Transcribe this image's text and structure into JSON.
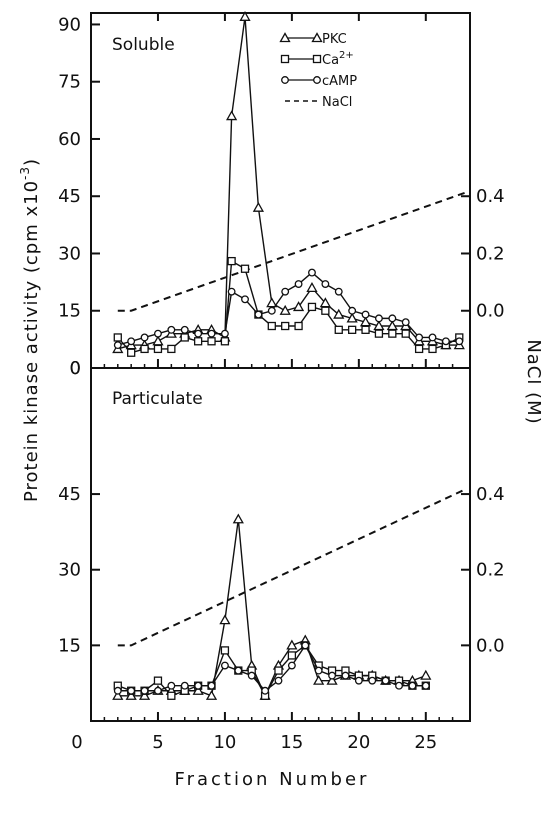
{
  "chart_data": [
    {
      "type": "line",
      "panel_label": "Soluble",
      "x_range": [
        0,
        28
      ],
      "x_ticks": [
        "0",
        "5",
        "10",
        "15",
        "20",
        "25"
      ],
      "left_y_range": [
        0,
        93
      ],
      "left_y_ticks": [
        "0",
        "15",
        "30",
        "45",
        "60",
        "75",
        "90"
      ],
      "right_axis": {
        "ticks": [
          "0.0",
          "0.2",
          "0.4"
        ],
        "values": [
          0.0,
          0.2,
          0.4
        ]
      },
      "legend": [
        {
          "marker": "triangle",
          "label": "PKC"
        },
        {
          "marker": "square",
          "label": "Ca2+"
        },
        {
          "marker": "circle",
          "label": "cAMP"
        },
        {
          "marker": "dashed",
          "label": "NaCl"
        }
      ],
      "series": [
        {
          "name": "PKC",
          "marker": "triangle",
          "x": [
            2,
            3,
            4,
            5,
            6,
            7,
            8,
            9,
            10,
            10.5,
            11.5,
            12.5,
            13.5,
            14.5,
            15.5,
            16.5,
            17.5,
            18.5,
            19.5,
            20.5,
            21.5,
            22.5,
            23.5,
            24.5,
            25.5,
            26.5,
            27.5
          ],
          "y": [
            5,
            6,
            6,
            7,
            9,
            9,
            10,
            10,
            8,
            66,
            92,
            42,
            17,
            15,
            16,
            21,
            17,
            14,
            13,
            12,
            11,
            11,
            11,
            7,
            7,
            6,
            6
          ]
        },
        {
          "name": "Ca2+",
          "marker": "square",
          "x": [
            2,
            3,
            4,
            5,
            6,
            7,
            8,
            9,
            10,
            10.5,
            11.5,
            12.5,
            13.5,
            14.5,
            15.5,
            16.5,
            17.5,
            18.5,
            19.5,
            20.5,
            21.5,
            22.5,
            23.5,
            24.5,
            25.5,
            26.5,
            27.5
          ],
          "y": [
            8,
            4,
            5,
            5,
            5,
            8,
            7,
            7,
            7,
            28,
            26,
            14,
            11,
            11,
            11,
            16,
            15,
            10,
            10,
            10,
            9,
            9,
            9,
            5,
            5,
            6,
            8
          ]
        },
        {
          "name": "cAMP",
          "marker": "circle",
          "x": [
            2,
            3,
            4,
            5,
            6,
            7,
            8,
            9,
            10,
            10.5,
            11.5,
            12.5,
            13.5,
            14.5,
            15.5,
            16.5,
            17.5,
            18.5,
            19.5,
            20.5,
            21.5,
            22.5,
            23.5,
            24.5,
            25.5,
            26.5,
            27.5
          ],
          "y": [
            6,
            7,
            8,
            9,
            10,
            10,
            9,
            9,
            9,
            20,
            18,
            14,
            15,
            20,
            22,
            25,
            22,
            20,
            15,
            14,
            13,
            13,
            12,
            8,
            8,
            7,
            7
          ]
        }
      ],
      "nacl_line": {
        "x": [
          2,
          3,
          28
        ],
        "y": [
          15,
          15,
          46
        ]
      }
    },
    {
      "type": "line",
      "panel_label": "Particulate",
      "x_range": [
        0,
        28
      ],
      "x_ticks": [
        "0",
        "5",
        "10",
        "15",
        "20",
        "25"
      ],
      "left_y_range": [
        0,
        70
      ],
      "left_y_ticks": [
        "15",
        "30",
        "45"
      ],
      "right_axis": {
        "ticks": [
          "0.0",
          "0.2",
          "0.4"
        ],
        "values": [
          0.0,
          0.2,
          0.4
        ]
      },
      "series": [
        {
          "name": "PKC",
          "marker": "triangle",
          "x": [
            2,
            3,
            4,
            5,
            6,
            7,
            8,
            9,
            10,
            11,
            12,
            13,
            14,
            15,
            16,
            17,
            18,
            19,
            20,
            21,
            22,
            23,
            24,
            25
          ],
          "y": [
            5,
            5,
            5,
            6,
            6,
            6,
            6,
            5,
            20,
            40,
            11,
            5,
            11,
            15,
            16,
            8,
            8,
            9,
            9,
            9,
            8,
            8,
            8,
            9
          ]
        },
        {
          "name": "Ca2+",
          "marker": "square",
          "x": [
            2,
            3,
            4,
            5,
            6,
            7,
            8,
            9,
            10,
            11,
            12,
            13,
            14,
            15,
            16,
            17,
            18,
            19,
            20,
            21,
            22,
            23,
            24,
            25
          ],
          "y": [
            7,
            6,
            6,
            8,
            5,
            6,
            7,
            7,
            14,
            10,
            10,
            5,
            10,
            13,
            15,
            11,
            10,
            10,
            9,
            9,
            8,
            8,
            7,
            7
          ]
        },
        {
          "name": "cAMP",
          "marker": "circle",
          "x": [
            2,
            3,
            4,
            5,
            6,
            7,
            8,
            9,
            10,
            11,
            12,
            13,
            14,
            15,
            16,
            17,
            18,
            19,
            20,
            21,
            22,
            23,
            24,
            25
          ],
          "y": [
            6,
            6,
            6,
            6,
            7,
            7,
            7,
            7,
            11,
            10,
            9,
            6,
            8,
            11,
            15,
            10,
            9,
            9,
            8,
            8,
            8,
            7,
            7,
            7
          ]
        }
      ],
      "nacl_line": {
        "x": [
          2,
          3,
          28
        ],
        "y": [
          15,
          15,
          46
        ]
      }
    }
  ],
  "axes": {
    "left_title": "Protein kinase activity (cpm x10",
    "left_title_sup": "-3",
    "left_title_end": ")",
    "right_title": "NaCl (M)",
    "bottom_title": "Fraction Number"
  },
  "colors": {
    "ink": "#111111",
    "background": "#ffffff"
  }
}
